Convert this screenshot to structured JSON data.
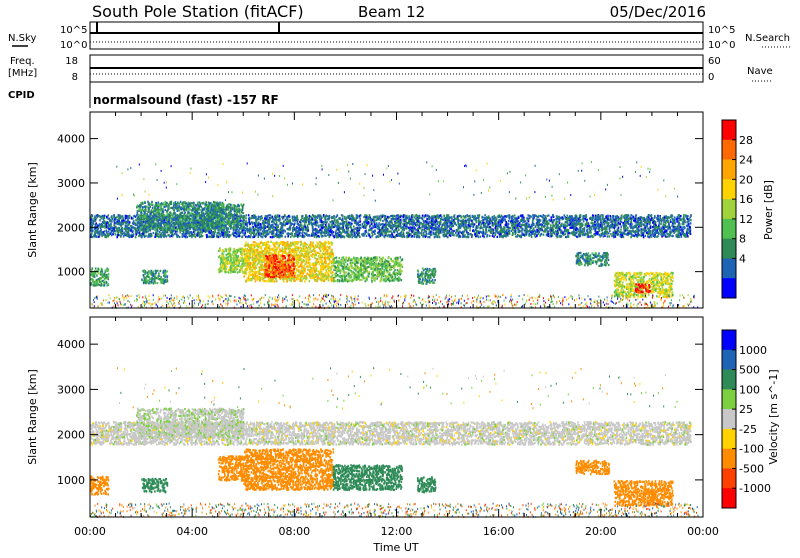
{
  "header": {
    "station": "South Pole Station (fitACF)",
    "beam": "Beam 12",
    "date": "05/Dec/2016"
  },
  "top_panels": {
    "nsky": {
      "label": "N.Sky",
      "ticks": [
        "10^5",
        "10^0"
      ]
    },
    "nsearch": {
      "label": "N.Search",
      "ticks": [
        "10^5",
        "10^0"
      ]
    },
    "freq": {
      "label_line1": "Freq.",
      "label_line2": "[MHz]",
      "ticks": [
        "18",
        "8"
      ]
    },
    "nave": {
      "label": "Nave",
      "ticks": [
        "60",
        "0"
      ]
    },
    "cpid": {
      "label": "CPID",
      "program": "normalsound (fast) -157 RF"
    }
  },
  "power_panel": {
    "ylabel": "Slant Range [km]",
    "yticks": [
      "4000",
      "3000",
      "2000",
      "1000"
    ],
    "colorbar_label": "Power [dB]",
    "colorbar_ticks": [
      "28",
      "24",
      "20",
      "16",
      "12",
      "8",
      "4"
    ],
    "colorbar_colors": [
      "#ff0000",
      "#ff6a00",
      "#ffa500",
      "#ffd200",
      "#a0d23c",
      "#50c050",
      "#2e8b57",
      "#1e64b4",
      "#0000ff"
    ]
  },
  "velocity_panel": {
    "ylabel": "Slant Range [km]",
    "yticks": [
      "4000",
      "3000",
      "2000",
      "1000"
    ],
    "colorbar_label": "Velocity [m s^-1]",
    "colorbar_ticks": [
      "1000",
      "500",
      "100",
      "25",
      "-25",
      "-100",
      "-500",
      "-1000"
    ],
    "colorbar_colors": [
      "#0000ff",
      "#1e64b4",
      "#2e8b57",
      "#7cd040",
      "#c8c8c8",
      "#ffd200",
      "#ff8c00",
      "#ff4000",
      "#ff0000"
    ]
  },
  "x_axis": {
    "ticks": [
      "00:00",
      "04:00",
      "08:00",
      "12:00",
      "16:00",
      "20:00",
      "00:00"
    ],
    "label": "Time UT"
  },
  "chart_data": [
    {
      "type": "heatmap",
      "variable": "power",
      "xlabel": "Time UT",
      "ylabel": "Slant Range [km]",
      "xlim": [
        0,
        24
      ],
      "ylim": [
        180,
        4600
      ],
      "zlim": [
        0,
        30
      ],
      "units": "dB",
      "echo_regions": [
        {
          "t0": 0.0,
          "t1": 23.5,
          "r0": 1800,
          "r1": 2300,
          "level": 6
        },
        {
          "t0": 1.8,
          "t1": 5.2,
          "r0": 1950,
          "r1": 2600,
          "level": 8
        },
        {
          "t0": 4.5,
          "t1": 6.0,
          "r0": 2000,
          "r1": 2550,
          "level": 8
        },
        {
          "t0": 0.0,
          "t1": 0.7,
          "r0": 700,
          "r1": 1100,
          "level": 10
        },
        {
          "t0": 2.0,
          "t1": 3.0,
          "r0": 750,
          "r1": 1050,
          "level": 9
        },
        {
          "t0": 5.0,
          "t1": 6.0,
          "r0": 1000,
          "r1": 1550,
          "level": 14
        },
        {
          "t0": 6.0,
          "t1": 9.5,
          "r0": 800,
          "r1": 1700,
          "level": 18
        },
        {
          "t0": 6.8,
          "t1": 8.0,
          "r0": 900,
          "r1": 1400,
          "level": 26
        },
        {
          "t0": 9.5,
          "t1": 12.2,
          "r0": 800,
          "r1": 1350,
          "level": 12
        },
        {
          "t0": 12.8,
          "t1": 13.5,
          "r0": 750,
          "r1": 1100,
          "level": 9
        },
        {
          "t0": 19.0,
          "t1": 20.3,
          "r0": 1150,
          "r1": 1450,
          "level": 8
        },
        {
          "t0": 20.5,
          "t1": 22.8,
          "r0": 450,
          "r1": 1000,
          "level": 16
        },
        {
          "t0": 21.3,
          "t1": 21.9,
          "r0": 550,
          "r1": 750,
          "level": 28
        }
      ]
    },
    {
      "type": "heatmap",
      "variable": "velocity",
      "xlabel": "Time UT",
      "ylabel": "Slant Range [km]",
      "xlim": [
        0,
        24
      ],
      "ylim": [
        180,
        4600
      ],
      "zlim": [
        -1000,
        1000
      ],
      "units": "m s^-1",
      "echo_regions": [
        {
          "t0": 0.0,
          "t1": 23.5,
          "r0": 1800,
          "r1": 2300,
          "level": 0
        },
        {
          "t0": 1.8,
          "t1": 6.0,
          "r0": 1950,
          "r1": 2600,
          "level": 10
        },
        {
          "t0": 0.0,
          "t1": 0.7,
          "r0": 700,
          "r1": 1100,
          "level": -300
        },
        {
          "t0": 2.0,
          "t1": 3.0,
          "r0": 750,
          "r1": 1050,
          "level": 150
        },
        {
          "t0": 5.0,
          "t1": 6.0,
          "r0": 1000,
          "r1": 1550,
          "level": -400
        },
        {
          "t0": 6.0,
          "t1": 9.5,
          "r0": 800,
          "r1": 1700,
          "level": -400
        },
        {
          "t0": 9.5,
          "t1": 12.2,
          "r0": 800,
          "r1": 1350,
          "level": 150
        },
        {
          "t0": 12.8,
          "t1": 13.5,
          "r0": 750,
          "r1": 1100,
          "level": 150
        },
        {
          "t0": 19.0,
          "t1": 20.3,
          "r0": 1150,
          "r1": 1450,
          "level": -300
        },
        {
          "t0": 20.5,
          "t1": 22.8,
          "r0": 450,
          "r1": 1000,
          "level": -400
        }
      ]
    }
  ]
}
